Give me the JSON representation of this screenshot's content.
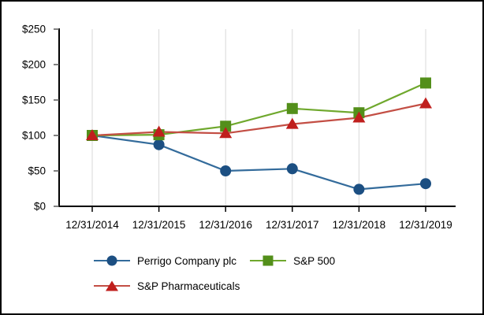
{
  "frame": {
    "background": "#ffffff",
    "border_color": "#000000"
  },
  "chart_data": {
    "type": "line",
    "title": "",
    "categories": [
      "12/31/2014",
      "12/31/2015",
      "12/31/2016",
      "12/31/2017",
      "12/31/2018",
      "12/31/2019"
    ],
    "series": [
      {
        "name": "Perrigo Company plc",
        "marker": "circle",
        "line_color": "#336b9b",
        "marker_color": "#1c4f82",
        "values": [
          100,
          87,
          50,
          53,
          24,
          32
        ]
      },
      {
        "name": "S&P 500",
        "marker": "square",
        "line_color": "#6fa82d",
        "marker_color": "#538f1a",
        "values": [
          100,
          101,
          113,
          138,
          132,
          174
        ]
      },
      {
        "name": "S&P Pharmaceuticals",
        "marker": "triangle",
        "line_color": "#c34e44",
        "marker_color": "#c01f1d",
        "values": [
          100,
          105,
          103,
          116,
          125,
          145
        ]
      }
    ],
    "y_axis": {
      "min": 0,
      "max": 250,
      "tick_interval": 50,
      "tick_labels": [
        "$0",
        "$50",
        "$100",
        "$150",
        "$200",
        "$250"
      ]
    },
    "xlabel": "",
    "ylabel": "",
    "grid": "vertical-gridlines-only",
    "legend_position": "bottom",
    "gridline_color": "#d9d9d9",
    "axis_color": "#000000",
    "text_color": "#000000"
  }
}
